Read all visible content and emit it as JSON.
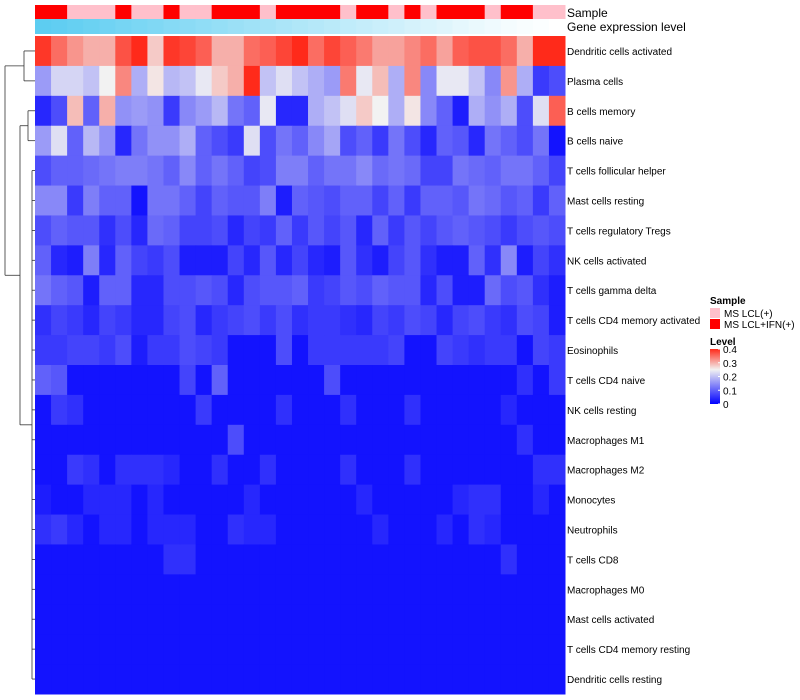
{
  "chart_data": {
    "type": "heatmap",
    "annotation_tracks": [
      "Sample",
      "Gene expression level"
    ],
    "row_labels": [
      "Dendritic cells activated",
      "Plasma cells",
      "B cells memory",
      "B cells naive",
      "T cells follicular helper",
      "Mast cells resting",
      "T cells regulatory  Tregs",
      "NK cells activated",
      "T cells gamma delta",
      "T cells CD4 memory activated",
      "Eosinophils",
      "T cells CD4 naive",
      "NK cells resting",
      "Macrophages M1",
      "Macrophages M2",
      "Monocytes",
      "Neutrophils",
      "T cells CD8",
      "Macrophages M0",
      "Mast cells activated",
      "T cells CD4 memory resting",
      "Dendritic cells resting"
    ],
    "sample_groups": [
      1,
      1,
      0,
      0,
      0,
      1,
      0,
      0,
      1,
      0,
      0,
      1,
      1,
      1,
      0,
      1,
      1,
      1,
      1,
      0,
      1,
      1,
      0,
      1,
      0,
      1,
      1,
      1,
      0,
      1,
      1,
      0,
      0
    ],
    "expression_level": [
      0.92,
      0.9,
      0.87,
      0.84,
      0.81,
      0.78,
      0.75,
      0.72,
      0.69,
      0.66,
      0.63,
      0.6,
      0.57,
      0.54,
      0.51,
      0.48,
      0.45,
      0.42,
      0.39,
      0.36,
      0.33,
      0.3,
      0.27,
      0.24,
      0.21,
      0.18,
      0.15,
      0.12,
      0.09,
      0.06,
      0.04,
      0.02,
      0.0
    ],
    "values": [
      [
        0.39,
        0.35,
        0.32,
        0.3,
        0.3,
        0.37,
        0.4,
        0.28,
        0.39,
        0.38,
        0.36,
        0.3,
        0.3,
        0.35,
        0.36,
        0.38,
        0.4,
        0.35,
        0.38,
        0.36,
        0.34,
        0.31,
        0.31,
        0.33,
        0.35,
        0.31,
        0.36,
        0.37,
        0.37,
        0.35,
        0.3,
        0.4,
        0.4
      ],
      [
        0.16,
        0.22,
        0.22,
        0.2,
        0.25,
        0.33,
        0.18,
        0.26,
        0.19,
        0.2,
        0.24,
        0.28,
        0.3,
        0.4,
        0.2,
        0.23,
        0.2,
        0.18,
        0.16,
        0.34,
        0.24,
        0.29,
        0.18,
        0.33,
        0.14,
        0.24,
        0.24,
        0.2,
        0.14,
        0.32,
        0.18,
        0.06,
        0.08
      ],
      [
        0.04,
        0.08,
        0.29,
        0.1,
        0.3,
        0.15,
        0.16,
        0.15,
        0.06,
        0.14,
        0.16,
        0.19,
        0.12,
        0.1,
        0.24,
        0.04,
        0.04,
        0.18,
        0.2,
        0.23,
        0.28,
        0.25,
        0.18,
        0.26,
        0.14,
        0.1,
        0.03,
        0.18,
        0.15,
        0.18,
        0.08,
        0.23,
        0.36
      ],
      [
        0.16,
        0.23,
        0.1,
        0.19,
        0.15,
        0.04,
        0.12,
        0.15,
        0.15,
        0.18,
        0.1,
        0.08,
        0.06,
        0.23,
        0.08,
        0.12,
        0.1,
        0.14,
        0.17,
        0.08,
        0.1,
        0.06,
        0.12,
        0.08,
        0.04,
        0.1,
        0.09,
        0.04,
        0.12,
        0.1,
        0.08,
        0.12,
        0.02
      ],
      [
        0.08,
        0.1,
        0.1,
        0.11,
        0.12,
        0.13,
        0.13,
        0.12,
        0.1,
        0.14,
        0.1,
        0.12,
        0.1,
        0.07,
        0.08,
        0.13,
        0.13,
        0.1,
        0.12,
        0.12,
        0.14,
        0.11,
        0.12,
        0.11,
        0.07,
        0.07,
        0.12,
        0.11,
        0.1,
        0.12,
        0.12,
        0.1,
        0.07
      ],
      [
        0.14,
        0.14,
        0.06,
        0.13,
        0.1,
        0.1,
        0.02,
        0.12,
        0.12,
        0.1,
        0.07,
        0.1,
        0.09,
        0.09,
        0.13,
        0.03,
        0.1,
        0.09,
        0.08,
        0.1,
        0.1,
        0.07,
        0.1,
        0.06,
        0.1,
        0.1,
        0.09,
        0.12,
        0.11,
        0.09,
        0.1,
        0.06,
        0.1
      ],
      [
        0.08,
        0.1,
        0.09,
        0.09,
        0.05,
        0.08,
        0.04,
        0.11,
        0.1,
        0.07,
        0.07,
        0.08,
        0.04,
        0.07,
        0.06,
        0.1,
        0.06,
        0.09,
        0.07,
        0.09,
        0.04,
        0.1,
        0.06,
        0.09,
        0.07,
        0.09,
        0.1,
        0.09,
        0.08,
        0.06,
        0.08,
        0.09,
        0.08
      ],
      [
        0.1,
        0.04,
        0.03,
        0.13,
        0.04,
        0.1,
        0.07,
        0.06,
        0.08,
        0.03,
        0.03,
        0.03,
        0.07,
        0.04,
        0.09,
        0.04,
        0.07,
        0.04,
        0.03,
        0.09,
        0.05,
        0.03,
        0.07,
        0.09,
        0.05,
        0.03,
        0.03,
        0.1,
        0.05,
        0.14,
        0.03,
        0.07,
        0.05
      ],
      [
        0.12,
        0.1,
        0.09,
        0.03,
        0.1,
        0.1,
        0.04,
        0.04,
        0.08,
        0.08,
        0.09,
        0.08,
        0.04,
        0.08,
        0.09,
        0.09,
        0.1,
        0.06,
        0.07,
        0.09,
        0.08,
        0.1,
        0.09,
        0.09,
        0.04,
        0.08,
        0.03,
        0.03,
        0.11,
        0.08,
        0.09,
        0.05,
        0.03
      ],
      [
        0.05,
        0.07,
        0.06,
        0.04,
        0.07,
        0.06,
        0.04,
        0.04,
        0.07,
        0.08,
        0.04,
        0.06,
        0.07,
        0.08,
        0.06,
        0.08,
        0.05,
        0.06,
        0.06,
        0.05,
        0.04,
        0.07,
        0.06,
        0.08,
        0.07,
        0.04,
        0.07,
        0.08,
        0.06,
        0.05,
        0.08,
        0.07,
        0.03
      ],
      [
        0.06,
        0.06,
        0.07,
        0.07,
        0.06,
        0.08,
        0.03,
        0.06,
        0.06,
        0.08,
        0.07,
        0.06,
        0.02,
        0.02,
        0.02,
        0.08,
        0.02,
        0.06,
        0.06,
        0.06,
        0.06,
        0.06,
        0.07,
        0.02,
        0.02,
        0.07,
        0.06,
        0.05,
        0.06,
        0.06,
        0.02,
        0.07,
        0.06
      ],
      [
        0.1,
        0.09,
        0.02,
        0.02,
        0.02,
        0.02,
        0.02,
        0.02,
        0.02,
        0.07,
        0.02,
        0.1,
        0.02,
        0.02,
        0.02,
        0.02,
        0.02,
        0.02,
        0.08,
        0.02,
        0.02,
        0.02,
        0.02,
        0.02,
        0.02,
        0.02,
        0.02,
        0.02,
        0.02,
        0.02,
        0.05,
        0.02,
        0.06
      ],
      [
        0.02,
        0.06,
        0.05,
        0.02,
        0.02,
        0.02,
        0.02,
        0.02,
        0.02,
        0.02,
        0.06,
        0.02,
        0.02,
        0.02,
        0.02,
        0.05,
        0.02,
        0.02,
        0.02,
        0.05,
        0.02,
        0.02,
        0.02,
        0.05,
        0.02,
        0.02,
        0.02,
        0.02,
        0.02,
        0.04,
        0.02,
        0.02,
        0.02
      ],
      [
        0.02,
        0.02,
        0.02,
        0.02,
        0.02,
        0.02,
        0.02,
        0.02,
        0.02,
        0.02,
        0.02,
        0.02,
        0.08,
        0.02,
        0.02,
        0.02,
        0.02,
        0.02,
        0.02,
        0.02,
        0.02,
        0.02,
        0.02,
        0.02,
        0.02,
        0.02,
        0.02,
        0.02,
        0.02,
        0.02,
        0.05,
        0.02,
        0.02
      ],
      [
        0.02,
        0.02,
        0.06,
        0.05,
        0.02,
        0.05,
        0.05,
        0.05,
        0.04,
        0.02,
        0.02,
        0.05,
        0.02,
        0.02,
        0.05,
        0.02,
        0.02,
        0.02,
        0.02,
        0.05,
        0.02,
        0.02,
        0.02,
        0.05,
        0.02,
        0.02,
        0.02,
        0.02,
        0.02,
        0.02,
        0.02,
        0.05,
        0.05
      ],
      [
        0.03,
        0.02,
        0.02,
        0.04,
        0.04,
        0.04,
        0.02,
        0.04,
        0.02,
        0.02,
        0.02,
        0.02,
        0.02,
        0.04,
        0.02,
        0.02,
        0.02,
        0.02,
        0.02,
        0.02,
        0.04,
        0.02,
        0.02,
        0.02,
        0.02,
        0.02,
        0.04,
        0.05,
        0.05,
        0.02,
        0.02,
        0.04,
        0.02
      ],
      [
        0.05,
        0.06,
        0.04,
        0.02,
        0.04,
        0.04,
        0.02,
        0.04,
        0.04,
        0.04,
        0.02,
        0.02,
        0.05,
        0.04,
        0.04,
        0.02,
        0.02,
        0.02,
        0.02,
        0.02,
        0.02,
        0.04,
        0.02,
        0.02,
        0.02,
        0.04,
        0.02,
        0.05,
        0.04,
        0.02,
        0.02,
        0.02,
        0.02
      ],
      [
        0.02,
        0.02,
        0.02,
        0.02,
        0.02,
        0.02,
        0.02,
        0.02,
        0.05,
        0.05,
        0.02,
        0.02,
        0.02,
        0.02,
        0.02,
        0.02,
        0.02,
        0.02,
        0.02,
        0.02,
        0.02,
        0.02,
        0.02,
        0.02,
        0.02,
        0.02,
        0.02,
        0.02,
        0.02,
        0.05,
        0.02,
        0.02,
        0.02
      ],
      [
        0.02,
        0.02,
        0.02,
        0.02,
        0.02,
        0.02,
        0.02,
        0.02,
        0.02,
        0.02,
        0.02,
        0.02,
        0.02,
        0.02,
        0.02,
        0.02,
        0.02,
        0.02,
        0.02,
        0.02,
        0.02,
        0.02,
        0.02,
        0.02,
        0.02,
        0.02,
        0.02,
        0.02,
        0.02,
        0.02,
        0.02,
        0.02,
        0.02
      ],
      [
        0.02,
        0.02,
        0.02,
        0.02,
        0.02,
        0.02,
        0.02,
        0.02,
        0.02,
        0.02,
        0.02,
        0.02,
        0.02,
        0.02,
        0.02,
        0.02,
        0.02,
        0.02,
        0.02,
        0.02,
        0.02,
        0.02,
        0.02,
        0.02,
        0.02,
        0.02,
        0.02,
        0.02,
        0.02,
        0.02,
        0.02,
        0.02,
        0.02
      ],
      [
        0.02,
        0.02,
        0.02,
        0.02,
        0.02,
        0.02,
        0.02,
        0.02,
        0.02,
        0.02,
        0.02,
        0.02,
        0.02,
        0.02,
        0.02,
        0.02,
        0.02,
        0.02,
        0.02,
        0.02,
        0.02,
        0.02,
        0.02,
        0.02,
        0.02,
        0.02,
        0.02,
        0.02,
        0.02,
        0.02,
        0.02,
        0.02,
        0.02
      ],
      [
        0.02,
        0.02,
        0.02,
        0.02,
        0.02,
        0.02,
        0.02,
        0.02,
        0.02,
        0.02,
        0.02,
        0.02,
        0.02,
        0.02,
        0.02,
        0.02,
        0.02,
        0.02,
        0.02,
        0.02,
        0.02,
        0.02,
        0.02,
        0.02,
        0.02,
        0.02,
        0.02,
        0.02,
        0.02,
        0.02,
        0.02,
        0.02,
        0.02
      ]
    ],
    "color_scale": {
      "min": 0,
      "mid": 0.25,
      "max": 0.4,
      "low": "#0000ff",
      "mid_color": "#f2f2f2",
      "high": "#ff2a1a"
    },
    "legends": [
      {
        "title": "Sample",
        "entries": [
          {
            "label": "MS LCL(+)",
            "color": "#ffc0cb"
          },
          {
            "label": "MS LCL+IFN(+)",
            "color": "#ff0000"
          }
        ]
      },
      {
        "title": "Level",
        "ticks": [
          "0.4",
          "0.3",
          "0.2",
          "0.1",
          "0"
        ]
      }
    ],
    "dendrogram": "row clustering dendrogram on left"
  },
  "colors": {
    "sample_light": "#ffc0cb",
    "sample_dark": "#ff0000",
    "expression_low": "#ffffff",
    "expression_high": "#4fc9f0"
  }
}
